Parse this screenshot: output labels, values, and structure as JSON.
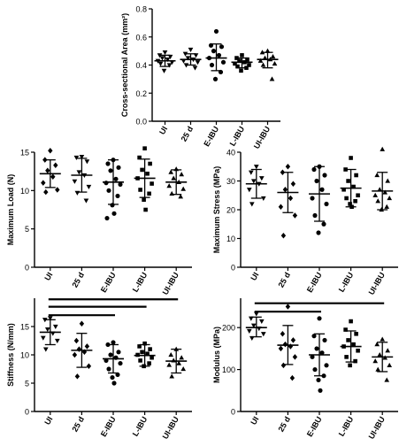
{
  "categories": [
    "UI",
    "25 d",
    "E-IBU",
    "L-IBU",
    "UI-IBU"
  ],
  "chart_data": [
    {
      "type": "scatter",
      "ylabel": "Cross-sectional Area (mm²)",
      "ylim": [
        0,
        0.8
      ],
      "yticks": [
        0,
        0.2,
        0.4,
        0.6,
        0.8
      ],
      "ytick_labels": [
        "0.0",
        "0.2",
        "0.4",
        "0.6",
        "0.8"
      ],
      "series": [
        {
          "category": "UI",
          "marker": "triangle-down",
          "mean": 0.43,
          "sd_upper": 0.47,
          "sd_lower": 0.39,
          "points": [
            0.49,
            0.47,
            0.46,
            0.45,
            0.44,
            0.43,
            0.42,
            0.41,
            0.4,
            0.36
          ]
        },
        {
          "category": "25 d",
          "marker": "triangle-down",
          "mean": 0.44,
          "sd_upper": 0.48,
          "sd_lower": 0.4,
          "points": [
            0.51,
            0.48,
            0.47,
            0.45,
            0.44,
            0.43,
            0.42,
            0.4,
            0.38
          ]
        },
        {
          "category": "E-IBU",
          "marker": "circle",
          "mean": 0.45,
          "sd_upper": 0.55,
          "sd_lower": 0.36,
          "points": [
            0.64,
            0.54,
            0.53,
            0.5,
            0.47,
            0.45,
            0.42,
            0.4,
            0.35,
            0.3
          ]
        },
        {
          "category": "L-IBU",
          "marker": "square",
          "mean": 0.42,
          "sd_upper": 0.45,
          "sd_lower": 0.38,
          "points": [
            0.47,
            0.45,
            0.44,
            0.43,
            0.42,
            0.41,
            0.4,
            0.39,
            0.38,
            0.36
          ]
        },
        {
          "category": "UI-IBU",
          "marker": "triangle-up",
          "mean": 0.44,
          "sd_upper": 0.49,
          "sd_lower": 0.38,
          "points": [
            0.5,
            0.49,
            0.46,
            0.45,
            0.44,
            0.43,
            0.41,
            0.4,
            0.3
          ]
        }
      ],
      "significance_bars": []
    },
    {
      "type": "scatter",
      "ylabel": "Maximum Load (N)",
      "ylim": [
        0,
        15
      ],
      "yticks": [
        0,
        5,
        10,
        15
      ],
      "ytick_labels": [
        "0",
        "5",
        "10",
        "15"
      ],
      "series": [
        {
          "category": "UI",
          "marker": "diamond",
          "mean": 12.2,
          "sd_upper": 14.0,
          "sd_lower": 10.4,
          "points": [
            15.2,
            14.0,
            13.3,
            12.6,
            11.8,
            11.0,
            10.1,
            9.8
          ]
        },
        {
          "category": "25 d",
          "marker": "triangle-down",
          "mean": 12.0,
          "sd_upper": 14.2,
          "sd_lower": 9.8,
          "points": [
            14.4,
            14.3,
            13.8,
            12.4,
            12.0,
            11.2,
            10.5,
            9.7,
            8.7
          ]
        },
        {
          "category": "E-IBU",
          "marker": "circle",
          "mean": 11.1,
          "sd_upper": 14.0,
          "sd_lower": 8.2,
          "points": [
            14.0,
            13.5,
            13.0,
            12.6,
            11.5,
            11.0,
            10.8,
            10.0,
            9.3,
            8.1,
            7.0,
            6.4
          ]
        },
        {
          "category": "L-IBU",
          "marker": "square",
          "mean": 11.6,
          "sd_upper": 14.1,
          "sd_lower": 9.1,
          "points": [
            15.5,
            14.3,
            13.5,
            12.7,
            12.2,
            11.6,
            10.9,
            10.1,
            9.6,
            8.8,
            7.5
          ]
        },
        {
          "category": "UI-IBU",
          "marker": "triangle-up",
          "mean": 11.1,
          "sd_upper": 12.7,
          "sd_lower": 9.5,
          "points": [
            12.8,
            12.4,
            12.1,
            11.6,
            11.1,
            10.6,
            10.2,
            9.6,
            9.2
          ]
        }
      ],
      "significance_bars": []
    },
    {
      "type": "scatter",
      "ylabel": "Maximum Stress (MPa)",
      "ylim": [
        0,
        40
      ],
      "yticks": [
        0,
        10,
        20,
        30,
        40
      ],
      "ytick_labels": [
        "0",
        "10",
        "20",
        "30",
        "40"
      ],
      "series": [
        {
          "category": "UI",
          "marker": "triangle-down",
          "mean": 29.0,
          "sd_upper": 34.0,
          "sd_lower": 24.0,
          "points": [
            35.0,
            33.0,
            31.0,
            30.0,
            29.0,
            27.0,
            24.0,
            22.0
          ]
        },
        {
          "category": "25 d",
          "marker": "diamond",
          "mean": 26.0,
          "sd_upper": 33.0,
          "sd_lower": 19.0,
          "points": [
            35.0,
            33.0,
            29.0,
            27.0,
            24.0,
            21.0,
            18.0,
            11.0
          ]
        },
        {
          "category": "E-IBU",
          "marker": "circle",
          "mean": 25.5,
          "sd_upper": 35.0,
          "sd_lower": 16.0,
          "points": [
            35.0,
            34.0,
            32.0,
            30.0,
            27.0,
            24.0,
            22.0,
            18.0,
            15.0,
            12.0
          ]
        },
        {
          "category": "L-IBU",
          "marker": "square",
          "mean": 27.5,
          "sd_upper": 34.0,
          "sd_lower": 21.0,
          "points": [
            38.0,
            34.0,
            32.0,
            30.0,
            28.0,
            27.0,
            25.0,
            24.0,
            23.0,
            22.0,
            21.0
          ]
        },
        {
          "category": "UI-IBU",
          "marker": "triangle-up",
          "mean": 26.5,
          "sd_upper": 33.0,
          "sd_lower": 20.0,
          "points": [
            41.0,
            32.0,
            30.0,
            27.0,
            26.0,
            25.0,
            24.0,
            23.0,
            21.0,
            20.0
          ]
        }
      ],
      "significance_bars": []
    },
    {
      "type": "scatter",
      "ylabel": "Stiffness (N/mm)",
      "ylim": [
        0,
        20
      ],
      "yticks": [
        0,
        5,
        10,
        15
      ],
      "ytick_labels": [
        "0",
        "5",
        "10",
        "15"
      ],
      "series": [
        {
          "category": "UI",
          "marker": "triangle-down",
          "mean": 14.0,
          "sd_upper": 16.2,
          "sd_lower": 11.8,
          "points": [
            16.5,
            16.2,
            15.0,
            14.5,
            13.8,
            13.0,
            12.5,
            11.0
          ]
        },
        {
          "category": "25 d",
          "marker": "diamond",
          "mean": 10.8,
          "sd_upper": 13.8,
          "sd_lower": 7.8,
          "points": [
            15.5,
            12.5,
            11.5,
            11.0,
            10.5,
            10.0,
            8.0,
            6.2
          ]
        },
        {
          "category": "E-IBU",
          "marker": "circle",
          "mean": 9.3,
          "sd_upper": 11.8,
          "sd_lower": 6.8,
          "points": [
            12.2,
            11.8,
            10.5,
            10.0,
            9.5,
            9.0,
            8.5,
            7.5,
            6.5,
            6.0,
            5.0
          ]
        },
        {
          "category": "L-IBU",
          "marker": "square",
          "mean": 9.9,
          "sd_upper": 11.8,
          "sd_lower": 8.0,
          "points": [
            12.0,
            11.5,
            11.0,
            10.5,
            10.2,
            10.0,
            9.5,
            9.0,
            8.5,
            8.0
          ]
        },
        {
          "category": "UI-IBU",
          "marker": "triangle-up",
          "mean": 8.9,
          "sd_upper": 11.0,
          "sd_lower": 6.8,
          "points": [
            11.0,
            10.0,
            9.5,
            9.0,
            8.5,
            8.2,
            7.5,
            6.2
          ]
        }
      ],
      "significance_bars": [
        {
          "from": "UI",
          "to": "E-IBU",
          "y": 17.0
        },
        {
          "from": "UI",
          "to": "L-IBU",
          "y": 18.5
        },
        {
          "from": "UI",
          "to": "UI-IBU",
          "y": 19.8
        }
      ]
    },
    {
      "type": "scatter",
      "ylabel": "Modulus (MPa)",
      "ylim": [
        0,
        270
      ],
      "yticks": [
        0,
        100,
        200
      ],
      "ytick_labels": [
        "0",
        "100",
        "200"
      ],
      "series": [
        {
          "category": "UI",
          "marker": "triangle-down",
          "mean": 200,
          "sd_upper": 225,
          "sd_lower": 178,
          "points": [
            233,
            222,
            215,
            205,
            198,
            192,
            185,
            175
          ]
        },
        {
          "category": "25 d",
          "marker": "diamond",
          "mean": 158,
          "sd_upper": 205,
          "sd_lower": 112,
          "points": [
            250,
            185,
            170,
            160,
            155,
            150,
            130,
            110,
            80
          ]
        },
        {
          "category": "E-IBU",
          "marker": "circle",
          "mean": 135,
          "sd_upper": 185,
          "sd_lower": 85,
          "points": [
            222,
            180,
            170,
            150,
            140,
            130,
            110,
            100,
            85,
            75,
            50
          ]
        },
        {
          "category": "L-IBU",
          "marker": "square",
          "mean": 155,
          "sd_upper": 192,
          "sd_lower": 118,
          "points": [
            215,
            195,
            185,
            170,
            160,
            155,
            145,
            130,
            120,
            110
          ]
        },
        {
          "category": "UI-IBU",
          "marker": "triangle-up",
          "mean": 130,
          "sd_upper": 165,
          "sd_lower": 95,
          "points": [
            172,
            160,
            145,
            135,
            128,
            120,
            110,
            100,
            75
          ]
        }
      ],
      "significance_bars": [
        {
          "from": "UI",
          "to": "E-IBU",
          "y": 238
        },
        {
          "from": "UI",
          "to": "UI-IBU",
          "y": 258
        }
      ]
    }
  ]
}
